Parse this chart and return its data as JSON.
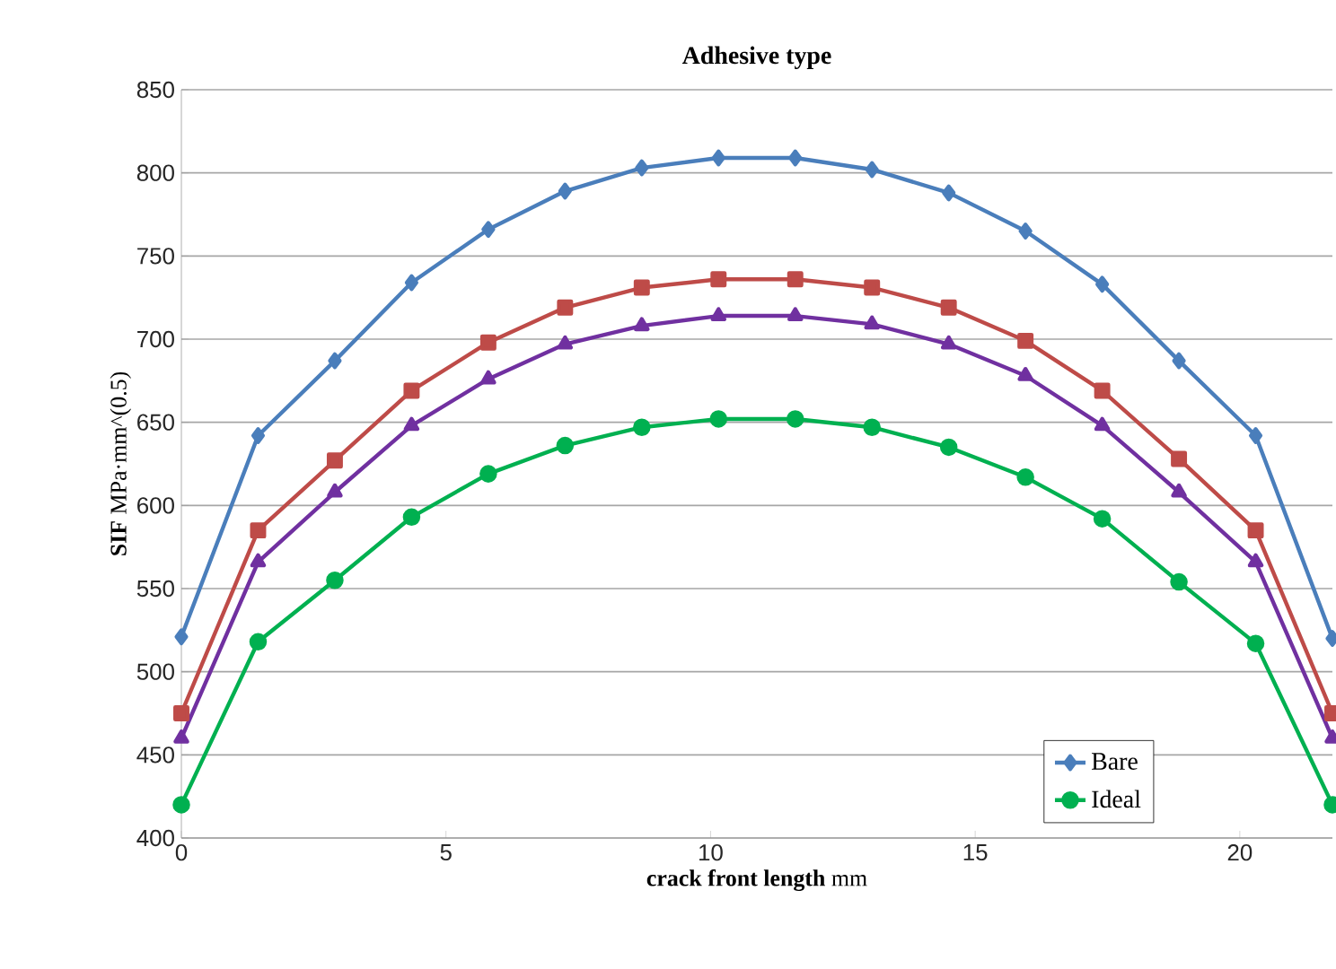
{
  "chart_data": {
    "type": "line",
    "title": "Adhesive type",
    "xlabel": "**crack front length**  mm",
    "ylabel": "**SIF**  MPa·mm^(0.5)",
    "x": [
      0,
      1.45,
      2.9,
      4.35,
      5.8,
      7.25,
      8.7,
      10.15,
      11.6,
      13.05,
      14.5,
      15.95,
      17.4,
      18.85,
      20.3,
      21.75
    ],
    "series": [
      {
        "name": "Bare",
        "color": "#4a7ebb",
        "marker": "diamond",
        "values": [
          521,
          642,
          687,
          734,
          766,
          789,
          803,
          809,
          809,
          802,
          788,
          765,
          733,
          687,
          642,
          520
        ]
      },
      {
        "color": "#be4b48",
        "marker": "square",
        "values": [
          475,
          585,
          627,
          669,
          698,
          719,
          731,
          736,
          736,
          731,
          719,
          699,
          669,
          628,
          585,
          475
        ]
      },
      {
        "color": "#7030a0",
        "marker": "triangle",
        "values": [
          460,
          566,
          608,
          648,
          676,
          697,
          708,
          714,
          714,
          709,
          697,
          678,
          648,
          608,
          566,
          460
        ]
      },
      {
        "name": "Ideal",
        "color": "#00b050",
        "marker": "circle",
        "values": [
          420,
          518,
          555,
          593,
          619,
          636,
          647,
          652,
          652,
          647,
          635,
          617,
          592,
          554,
          517,
          420
        ]
      }
    ],
    "xlim": [
      0,
      21.75
    ],
    "xticks": [
      0,
      5,
      10,
      15,
      20
    ],
    "ylim": [
      400,
      850
    ],
    "yticks": [
      400,
      450,
      500,
      550,
      600,
      650,
      700,
      750,
      800,
      850
    ],
    "grid": "y",
    "legend": "bottom right",
    "line_style": "solid"
  }
}
